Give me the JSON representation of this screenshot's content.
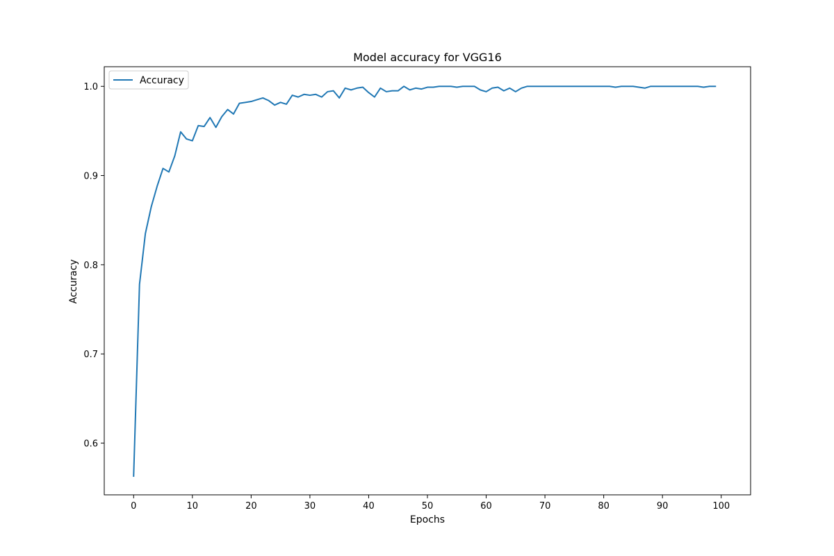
{
  "chart_data": {
    "type": "line",
    "title": "Model accuracy for VGG16",
    "xlabel": "Epochs",
    "ylabel": "Accuracy",
    "xlim": [
      -5,
      105
    ],
    "ylim": [
      0.542,
      1.022
    ],
    "xticks": [
      0,
      10,
      20,
      30,
      40,
      50,
      60,
      70,
      80,
      90,
      100
    ],
    "xtick_labels": [
      "0",
      "10",
      "20",
      "30",
      "40",
      "50",
      "60",
      "70",
      "80",
      "90",
      "100"
    ],
    "yticks": [
      0.6,
      0.7,
      0.8,
      0.9,
      1.0
    ],
    "ytick_labels": [
      "0.6",
      "0.7",
      "0.8",
      "0.9",
      "1.0"
    ],
    "grid": false,
    "legend_position": "top-left",
    "series": [
      {
        "name": "Accuracy",
        "color": "#1f77b4",
        "x": [
          0,
          1,
          2,
          3,
          4,
          5,
          6,
          7,
          8,
          9,
          10,
          11,
          12,
          13,
          14,
          15,
          16,
          17,
          18,
          19,
          20,
          21,
          22,
          23,
          24,
          25,
          26,
          27,
          28,
          29,
          30,
          31,
          32,
          33,
          34,
          35,
          36,
          37,
          38,
          39,
          40,
          41,
          42,
          43,
          44,
          45,
          46,
          47,
          48,
          49,
          50,
          51,
          52,
          53,
          54,
          55,
          56,
          57,
          58,
          59,
          60,
          61,
          62,
          63,
          64,
          65,
          66,
          67,
          68,
          69,
          70,
          71,
          72,
          73,
          74,
          75,
          76,
          77,
          78,
          79,
          80,
          81,
          82,
          83,
          84,
          85,
          86,
          87,
          88,
          89,
          90,
          91,
          92,
          93,
          94,
          95,
          96,
          97,
          98,
          99
        ],
        "y": [
          0.563,
          0.778,
          0.835,
          0.865,
          0.888,
          0.908,
          0.904,
          0.922,
          0.949,
          0.941,
          0.939,
          0.956,
          0.955,
          0.965,
          0.954,
          0.966,
          0.974,
          0.969,
          0.981,
          0.982,
          0.983,
          0.985,
          0.987,
          0.984,
          0.979,
          0.982,
          0.98,
          0.99,
          0.988,
          0.991,
          0.99,
          0.991,
          0.988,
          0.994,
          0.995,
          0.987,
          0.998,
          0.996,
          0.998,
          0.999,
          0.993,
          0.988,
          0.998,
          0.994,
          0.995,
          0.995,
          1.0,
          0.996,
          0.998,
          0.997,
          0.999,
          0.999,
          1.0,
          1.0,
          1.0,
          0.999,
          1.0,
          1.0,
          1.0,
          0.996,
          0.994,
          0.998,
          0.999,
          0.995,
          0.998,
          0.994,
          0.998,
          1.0,
          1.0,
          1.0,
          1.0,
          1.0,
          1.0,
          1.0,
          1.0,
          1.0,
          1.0,
          1.0,
          1.0,
          1.0,
          1.0,
          1.0,
          0.999,
          1.0,
          1.0,
          1.0,
          0.999,
          0.998,
          1.0,
          1.0,
          1.0,
          1.0,
          1.0,
          1.0,
          1.0,
          1.0,
          1.0,
          0.999,
          1.0,
          1.0
        ]
      }
    ]
  }
}
